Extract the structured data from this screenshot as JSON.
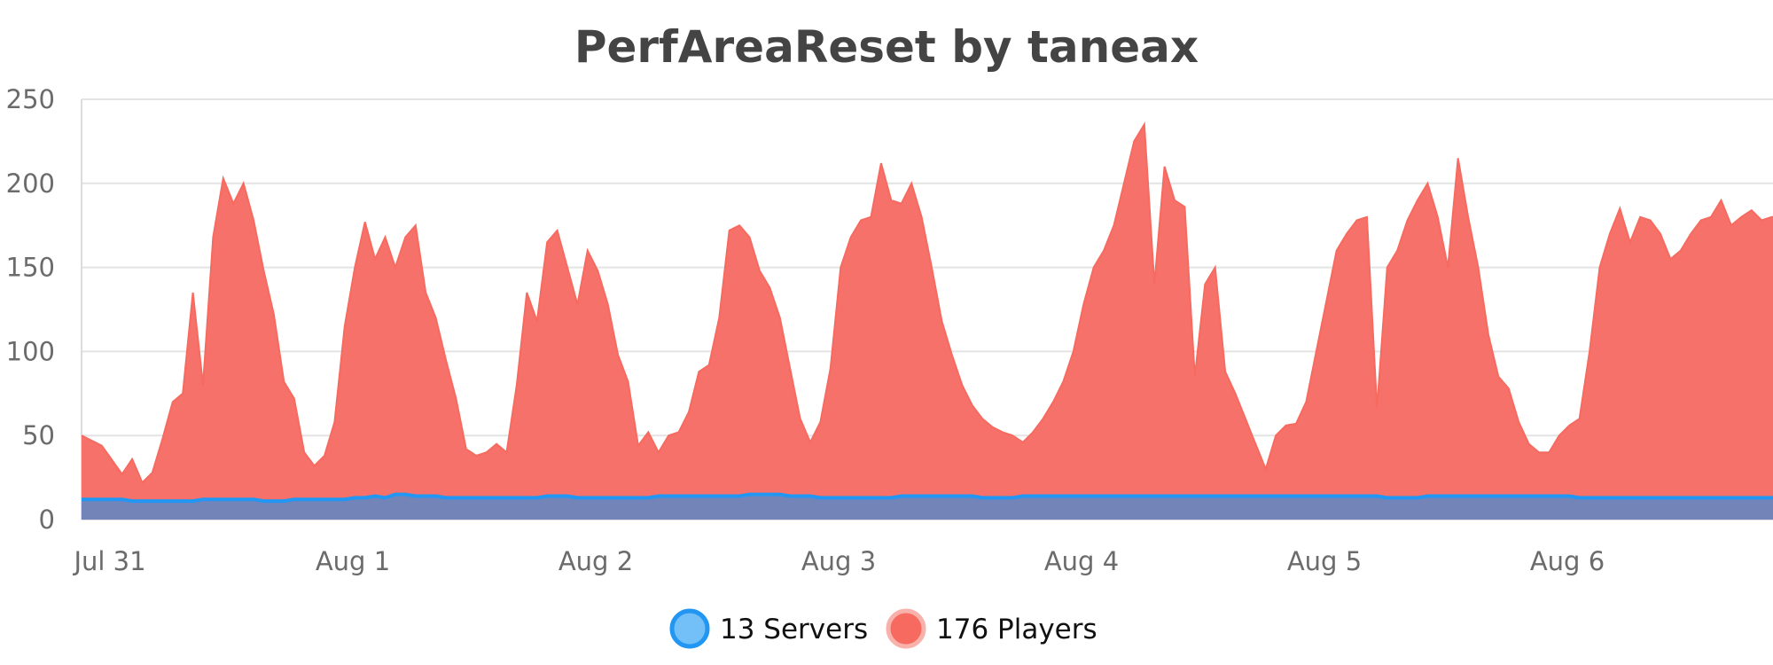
{
  "chart_data": {
    "type": "area",
    "title": "PerfAreaReset by taneax",
    "xlabel": "",
    "ylabel": "",
    "ylim": [
      0,
      250
    ],
    "yticks": [
      0,
      50,
      100,
      150,
      200,
      250
    ],
    "xticks": [
      "Jul 31",
      "Aug 1",
      "Aug 2",
      "Aug 3",
      "Aug 4",
      "Aug 5",
      "Aug 6"
    ],
    "x_range": [
      "Jul 31",
      "Aug 7"
    ],
    "grid": true,
    "legend_position": "bottom-center",
    "x": [
      "Jul 31 00:00",
      "Jul 31 02:00",
      "Jul 31 04:00",
      "Jul 31 05:00",
      "Jul 31 06:00",
      "Jul 31 07:00",
      "Jul 31 08:00",
      "Jul 31 09:00",
      "Jul 31 10:00",
      "Jul 31 11:00",
      "Jul 31 12:00",
      "Jul 31 13:00",
      "Jul 31 14:00",
      "Jul 31 15:00",
      "Jul 31 16:00",
      "Jul 31 17:00",
      "Jul 31 18:00",
      "Jul 31 19:00",
      "Jul 31 20:00",
      "Jul 31 21:00",
      "Jul 31 22:00",
      "Jul 31 23:00",
      "Aug 1 00:00",
      "Aug 1 01:00",
      "Aug 1 02:00",
      "Aug 1 03:00",
      "Aug 1 04:00",
      "Aug 1 05:00",
      "Aug 1 06:00",
      "Aug 1 07:00",
      "Aug 1 08:00",
      "Aug 1 09:00",
      "Aug 1 10:00",
      "Aug 1 11:00",
      "Aug 1 12:00",
      "Aug 1 13:00",
      "Aug 1 14:00",
      "Aug 1 15:00",
      "Aug 1 16:00",
      "Aug 1 17:00",
      "Aug 1 18:00",
      "Aug 1 19:00",
      "Aug 1 20:00",
      "Aug 1 21:00",
      "Aug 1 22:00",
      "Aug 1 23:00",
      "Aug 2 00:00",
      "Aug 2 01:00",
      "Aug 2 02:00",
      "Aug 2 03:00",
      "Aug 2 04:00",
      "Aug 2 05:00",
      "Aug 2 06:00",
      "Aug 2 07:00",
      "Aug 2 08:00",
      "Aug 2 09:00",
      "Aug 2 10:00",
      "Aug 2 11:00",
      "Aug 2 12:00",
      "Aug 2 13:00",
      "Aug 2 14:00",
      "Aug 2 15:00",
      "Aug 2 16:00",
      "Aug 2 17:00",
      "Aug 2 18:00",
      "Aug 2 19:00",
      "Aug 2 20:00",
      "Aug 2 21:00",
      "Aug 2 22:00",
      "Aug 2 23:00",
      "Aug 3 00:00",
      "Aug 3 01:00",
      "Aug 3 02:00",
      "Aug 3 03:00",
      "Aug 3 04:00",
      "Aug 3 05:00",
      "Aug 3 06:00",
      "Aug 3 07:00",
      "Aug 3 08:00",
      "Aug 3 09:00",
      "Aug 3 10:00",
      "Aug 3 11:00",
      "Aug 3 12:00",
      "Aug 3 13:00",
      "Aug 3 14:00",
      "Aug 3 15:00",
      "Aug 3 16:00",
      "Aug 3 17:00",
      "Aug 3 18:00",
      "Aug 3 19:00",
      "Aug 3 20:00",
      "Aug 3 21:00",
      "Aug 3 22:00",
      "Aug 3 23:00",
      "Aug 4 00:00",
      "Aug 4 01:00",
      "Aug 4 02:00",
      "Aug 4 03:00",
      "Aug 4 04:00",
      "Aug 4 05:00",
      "Aug 4 06:00",
      "Aug 4 07:00",
      "Aug 4 08:00",
      "Aug 4 09:00",
      "Aug 4 10:00",
      "Aug 4 11:00",
      "Aug 4 12:00",
      "Aug 4 13:00",
      "Aug 4 14:00",
      "Aug 4 15:00",
      "Aug 4 16:00",
      "Aug 4 17:00",
      "Aug 4 18:00",
      "Aug 4 19:00",
      "Aug 4 20:00",
      "Aug 4 21:00",
      "Aug 4 22:00",
      "Aug 4 23:00",
      "Aug 5 00:00",
      "Aug 5 01:00",
      "Aug 5 02:00",
      "Aug 5 03:00",
      "Aug 5 04:00",
      "Aug 5 05:00",
      "Aug 5 06:00",
      "Aug 5 07:00",
      "Aug 5 08:00",
      "Aug 5 09:00",
      "Aug 5 10:00",
      "Aug 5 11:00",
      "Aug 5 12:00",
      "Aug 5 13:00",
      "Aug 5 14:00",
      "Aug 5 15:00",
      "Aug 5 16:00",
      "Aug 5 17:00",
      "Aug 5 18:00",
      "Aug 5 19:00",
      "Aug 5 20:00",
      "Aug 5 21:00",
      "Aug 5 22:00",
      "Aug 5 23:00",
      "Aug 6 00:00",
      "Aug 6 01:00",
      "Aug 6 02:00",
      "Aug 6 03:00",
      "Aug 6 04:00",
      "Aug 6 05:00",
      "Aug 6 06:00",
      "Aug 6 07:00",
      "Aug 6 08:00",
      "Aug 6 09:00",
      "Aug 6 10:00",
      "Aug 6 11:00",
      "Aug 6 12:00",
      "Aug 6 13:00",
      "Aug 6 14:00",
      "Aug 6 15:00",
      "Aug 6 16:00",
      "Aug 6 17:00",
      "Aug 6 18:00",
      "Aug 6 19:00",
      "Aug 6 20:00",
      "Aug 6 21:00",
      "Aug 6 22:00",
      "Aug 6 23:00"
    ],
    "series": [
      {
        "name": "13 Servers",
        "color": "#2196f3",
        "fill": "#6b85bd",
        "values": [
          12,
          12,
          12,
          11,
          11,
          11,
          11,
          11,
          11,
          11,
          12,
          12,
          12,
          12,
          12,
          12,
          11,
          11,
          11,
          12,
          12,
          12,
          12,
          12,
          12,
          13,
          13,
          14,
          13,
          15,
          15,
          14,
          14,
          14,
          13,
          13,
          13,
          13,
          13,
          13,
          13,
          13,
          13,
          13,
          14,
          14,
          14,
          13,
          13,
          13,
          13,
          13,
          13,
          13,
          13,
          14,
          14,
          14,
          14,
          14,
          14,
          14,
          14,
          14,
          15,
          15,
          15,
          15,
          14,
          14,
          14,
          13,
          13,
          13,
          13,
          13,
          13,
          13,
          13,
          14,
          14,
          14,
          14,
          14,
          14,
          14,
          14,
          13,
          13,
          13,
          13,
          14,
          14,
          14,
          14,
          14,
          14,
          14,
          14,
          14,
          14,
          14,
          14,
          14,
          14,
          14,
          14,
          14,
          14,
          14,
          14,
          14,
          14,
          14,
          14,
          14,
          14,
          14,
          14,
          14,
          14,
          14,
          14,
          14,
          14,
          14,
          14,
          13,
          13,
          13,
          13,
          14,
          14,
          14,
          14,
          14,
          14,
          14,
          14,
          14,
          14,
          14,
          14,
          14,
          14,
          14,
          13,
          13,
          13,
          13,
          13,
          13,
          13,
          13,
          13,
          13,
          13,
          13,
          13,
          13,
          13,
          13,
          13,
          13,
          13,
          13
        ]
      },
      {
        "name": "176 Players",
        "color": "#f66a5f",
        "fill": "#f6716a",
        "values": [
          50,
          44,
          27,
          36,
          22,
          28,
          48,
          70,
          75,
          135,
          80,
          168,
          203,
          188,
          200,
          178,
          148,
          122,
          82,
          72,
          40,
          32,
          38,
          58,
          115,
          150,
          177,
          155,
          168,
          150,
          168,
          175,
          135,
          120,
          95,
          72,
          42,
          38,
          40,
          45,
          40,
          80,
          135,
          118,
          165,
          172,
          150,
          128,
          160,
          148,
          128,
          98,
          82,
          44,
          52,
          40,
          50,
          52,
          64,
          88,
          92,
          120,
          172,
          175,
          168,
          148,
          138,
          120,
          90,
          60,
          46,
          58,
          90,
          150,
          168,
          178,
          180,
          212,
          190,
          188,
          200,
          180,
          150,
          118,
          98,
          80,
          68,
          60,
          55,
          52,
          50,
          46,
          52,
          60,
          70,
          82,
          100,
          128,
          150,
          160,
          175,
          200,
          225,
          235,
          140,
          210,
          190,
          186,
          85,
          140,
          150,
          88,
          75,
          60,
          45,
          30,
          50,
          56,
          57,
          70,
          100,
          130,
          160,
          170,
          178,
          180,
          66,
          150,
          160,
          178,
          190,
          200,
          180,
          150,
          215,
          180,
          150,
          110,
          85,
          78,
          58,
          45,
          40,
          40,
          50,
          56,
          60,
          100,
          150,
          170,
          185,
          165,
          180,
          178,
          170,
          155,
          160,
          170,
          178,
          180,
          190,
          175,
          180,
          184,
          178,
          180
        ]
      }
    ]
  }
}
